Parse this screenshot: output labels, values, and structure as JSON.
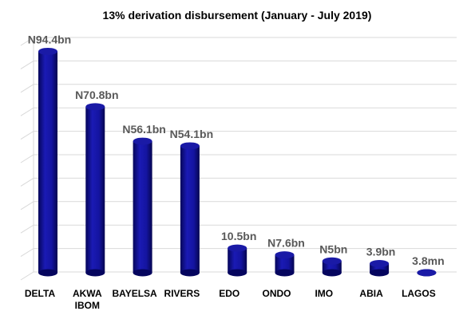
{
  "chart_data": {
    "type": "bar",
    "title": "13% derivation disbursement (January - July 2019)",
    "categories": [
      "DELTA",
      "AKWA IBOM",
      "BAYELSA",
      "RIVERS",
      "EDO",
      "ONDO",
      "IMO",
      "ABIA",
      "LAGOS"
    ],
    "category_lines": [
      [
        "DELTA"
      ],
      [
        "AKWA",
        "IBOM"
      ],
      [
        "BAYELSA"
      ],
      [
        "RIVERS"
      ],
      [
        "EDO"
      ],
      [
        "ONDO"
      ],
      [
        "IMO"
      ],
      [
        "ABIA"
      ],
      [
        "LAGOS"
      ]
    ],
    "values": [
      94.4,
      70.8,
      56.1,
      54.1,
      10.5,
      7.6,
      5,
      3.9,
      0.0038
    ],
    "data_labels": [
      "N94.4bn",
      "N70.8bn",
      "N56.1bn",
      "N54.1bn",
      "10.5bn",
      "N7.6bn",
      "N5bn",
      "3.9bn",
      "3.8mn"
    ],
    "unit": "billion naira",
    "ylim": [
      0,
      100
    ],
    "grid": true,
    "legend": "none",
    "xlabel": "",
    "ylabel": "",
    "bar_color": "#1a1aa6",
    "bar_dark_color": "#05055e",
    "bar_light_color": "#3a3ad0"
  }
}
